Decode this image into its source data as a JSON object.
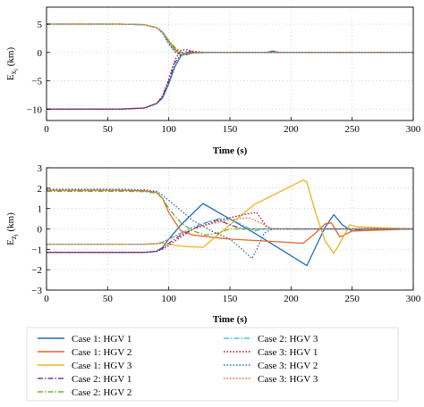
{
  "chart_data": [
    {
      "type": "line",
      "ylabel": "E",
      "ylabel_sub": "x",
      "ylabel_subsub": "i",
      "ylabel_unit": " (km)",
      "xlabel": "Time (s)",
      "xlim": [
        0,
        300
      ],
      "ylim": [
        -12,
        8
      ],
      "xticks": [
        0,
        50,
        100,
        150,
        200,
        250,
        300
      ],
      "yticks": [
        -10,
        -5,
        0,
        5
      ],
      "grid": true,
      "series": [
        {
          "name": "Case 1: HGV 1",
          "x": [
            0,
            60,
            80,
            90,
            95,
            100,
            105,
            110,
            115,
            120,
            130,
            150,
            180,
            185,
            190,
            200,
            300
          ],
          "y": [
            -10,
            -10,
            -9.8,
            -9,
            -8,
            -5.5,
            -2.5,
            -0.6,
            0,
            0,
            0,
            0,
            0,
            0.25,
            0,
            0,
            0
          ]
        },
        {
          "name": "Case 1: HGV 2",
          "x": [
            0,
            60,
            80,
            90,
            95,
            100,
            105,
            110,
            115,
            120,
            130,
            150,
            200,
            300
          ],
          "y": [
            5,
            5,
            4.9,
            4.4,
            3.6,
            2,
            0.6,
            -0.3,
            -0.4,
            -0.1,
            0,
            0,
            0,
            0
          ]
        },
        {
          "name": "Case 1: HGV 3",
          "x": [
            0,
            60,
            80,
            90,
            95,
            100,
            105,
            110,
            115,
            120,
            130,
            150,
            200,
            300
          ],
          "y": [
            5,
            5,
            4.9,
            4.4,
            3.6,
            1.8,
            0.3,
            -0.4,
            -0.3,
            0,
            0,
            0,
            0,
            0
          ]
        },
        {
          "name": "Case 2: HGV 1",
          "x": [
            0,
            60,
            80,
            90,
            95,
            100,
            105,
            110,
            115,
            120,
            130,
            150,
            200,
            300
          ],
          "y": [
            -10,
            -10,
            -9.8,
            -9,
            -7.8,
            -5,
            -1.8,
            -0.3,
            0.2,
            0.1,
            0,
            0,
            0,
            0
          ]
        },
        {
          "name": "Case 2: HGV 2",
          "x": [
            0,
            60,
            80,
            90,
            95,
            100,
            105,
            110,
            115,
            120,
            130,
            150,
            200,
            300
          ],
          "y": [
            5,
            5,
            4.9,
            4.4,
            3.6,
            2.1,
            0.9,
            0.1,
            -0.3,
            -0.1,
            0,
            0,
            0,
            0
          ]
        },
        {
          "name": "Case 2: HGV 3",
          "x": [
            0,
            60,
            80,
            90,
            95,
            100,
            105,
            110,
            115,
            120,
            130,
            150,
            200,
            300
          ],
          "y": [
            5,
            5,
            4.9,
            4.4,
            3.5,
            1.6,
            0.2,
            -0.3,
            -0.2,
            0,
            0,
            0,
            0,
            0
          ]
        },
        {
          "name": "Case 3: HGV 1",
          "x": [
            0,
            60,
            80,
            90,
            95,
            100,
            105,
            110,
            115,
            120,
            130,
            150,
            200,
            300
          ],
          "y": [
            -10,
            -10,
            -9.8,
            -9,
            -7.6,
            -4.6,
            -1.3,
            0.4,
            0.5,
            0.2,
            0,
            0,
            0,
            0
          ]
        },
        {
          "name": "Case 3: HGV 2",
          "x": [
            0,
            60,
            80,
            90,
            95,
            100,
            105,
            110,
            115,
            120,
            130,
            150,
            200,
            300
          ],
          "y": [
            5,
            5,
            4.9,
            4.4,
            3.4,
            1.5,
            0.1,
            -0.5,
            -0.3,
            0,
            0,
            0,
            0,
            0
          ]
        },
        {
          "name": "Case 3: HGV 3",
          "x": [
            0,
            60,
            80,
            90,
            95,
            100,
            105,
            110,
            115,
            120,
            130,
            150,
            200,
            300
          ],
          "y": [
            5,
            5,
            4.9,
            4.4,
            3.6,
            2,
            0.7,
            0,
            -0.2,
            0,
            0,
            0,
            0,
            0
          ]
        }
      ]
    },
    {
      "type": "line",
      "ylabel": "E",
      "ylabel_sub": "z",
      "ylabel_subsub": "i",
      "ylabel_unit": " (km)",
      "xlabel": "Time (s)",
      "xlim": [
        0,
        300
      ],
      "ylim": [
        -3,
        3
      ],
      "xticks": [
        0,
        50,
        100,
        150,
        200,
        250,
        300
      ],
      "yticks": [
        -3,
        -2,
        -1,
        0,
        1,
        2,
        3
      ],
      "grid": true,
      "series": [
        {
          "name": "Case 1: HGV 1",
          "x": [
            0,
            80,
            90,
            95,
            100,
            110,
            128,
            170,
            213,
            220,
            228,
            235,
            242,
            250,
            260,
            300
          ],
          "y": [
            -1.15,
            -1.15,
            -1.1,
            -0.9,
            -0.5,
            0.2,
            1.25,
            -0.2,
            -1.8,
            -0.9,
            0.1,
            0.7,
            0.2,
            -0.1,
            0,
            0
          ]
        },
        {
          "name": "Case 1: HGV 2",
          "x": [
            0,
            60,
            80,
            90,
            95,
            100,
            110,
            120,
            150,
            210,
            220,
            228,
            233,
            240,
            250,
            300
          ],
          "y": [
            1.9,
            1.9,
            1.87,
            1.8,
            1.5,
            0.8,
            -0.1,
            -0.3,
            -0.5,
            -0.7,
            -0.2,
            0.25,
            0.3,
            -0.4,
            -0.1,
            0
          ]
        },
        {
          "name": "Case 1: HGV 3",
          "x": [
            0,
            80,
            90,
            95,
            100,
            110,
            128,
            170,
            210,
            213,
            220,
            228,
            235,
            240,
            248,
            255,
            300
          ],
          "y": [
            -0.75,
            -0.75,
            -0.73,
            -0.7,
            -0.75,
            -0.85,
            -0.9,
            1.2,
            2.4,
            2.3,
            0.8,
            -0.6,
            -1.2,
            -0.7,
            0.2,
            0.1,
            0
          ]
        },
        {
          "name": "Case 2: HGV 1",
          "x": [
            0,
            80,
            90,
            95,
            100,
            110,
            120,
            130,
            140,
            150,
            160,
            180,
            300
          ],
          "y": [
            -1.15,
            -1.15,
            -1.1,
            -0.95,
            -0.7,
            -0.3,
            0,
            0.3,
            0.45,
            0.2,
            0,
            0,
            0
          ]
        },
        {
          "name": "Case 2: HGV 2",
          "x": [
            0,
            60,
            80,
            90,
            95,
            100,
            110,
            120,
            130,
            140,
            150,
            160,
            300
          ],
          "y": [
            1.85,
            1.85,
            1.83,
            1.75,
            1.5,
            1,
            0.3,
            -0.1,
            -0.3,
            -0.2,
            0,
            0,
            0
          ]
        },
        {
          "name": "Case 2: HGV 3",
          "x": [
            0,
            80,
            90,
            95,
            100,
            110,
            120,
            130,
            140,
            150,
            160,
            170,
            180,
            300
          ],
          "y": [
            -0.75,
            -0.75,
            -0.72,
            -0.65,
            -0.5,
            -0.2,
            0.1,
            0.3,
            0.5,
            0.5,
            0.2,
            -0.1,
            0,
            0
          ]
        },
        {
          "name": "Case 3: HGV 1",
          "x": [
            0,
            80,
            90,
            95,
            100,
            110,
            120,
            135,
            150,
            165,
            172,
            180,
            185,
            300
          ],
          "y": [
            -1.15,
            -1.15,
            -1.1,
            -1,
            -0.8,
            -0.4,
            0,
            0.3,
            0.55,
            0.75,
            0.8,
            0.1,
            0,
            0
          ]
        },
        {
          "name": "Case 3: HGV 2",
          "x": [
            0,
            60,
            80,
            90,
            95,
            100,
            110,
            120,
            135,
            150,
            160,
            168,
            172,
            178,
            185,
            300
          ],
          "y": [
            1.95,
            1.95,
            1.92,
            1.85,
            1.65,
            1.4,
            0.9,
            0.4,
            -0.1,
            -0.5,
            -1,
            -1.45,
            -1,
            -0.2,
            0,
            0
          ]
        },
        {
          "name": "Case 3: HGV 3",
          "x": [
            0,
            80,
            90,
            95,
            100,
            110,
            120,
            135,
            150,
            165,
            175,
            185,
            300
          ],
          "y": [
            -0.75,
            -0.75,
            -0.72,
            -0.65,
            -0.5,
            -0.25,
            0,
            0.25,
            0.45,
            0.55,
            0.3,
            0,
            0
          ]
        }
      ]
    }
  ],
  "legend": {
    "placement": "bottom",
    "items": [
      {
        "label": "Case 1: HGV 1",
        "color": "#1f6fb5",
        "dash": "solid"
      },
      {
        "label": "Case 1: HGV 2",
        "color": "#e6642a",
        "dash": "solid"
      },
      {
        "label": "Case 1: HGV 3",
        "color": "#eeb220",
        "dash": "solid"
      },
      {
        "label": "Case 2: HGV 1",
        "color": "#7b3a94",
        "dash": "dashdot"
      },
      {
        "label": "Case 2: HGV 2",
        "color": "#77ac30",
        "dash": "dashdot"
      },
      {
        "label": "Case 2: HGV 3",
        "color": "#4dbeee",
        "dash": "dashdot"
      },
      {
        "label": "Case 3: HGV 1",
        "color": "#a2142f",
        "dash": "dotted"
      },
      {
        "label": "Case 3: HGV 2",
        "color": "#1f6fb5",
        "dash": "dotted"
      },
      {
        "label": "Case 3: HGV 3",
        "color": "#e6642a",
        "dash": "dotted"
      }
    ]
  }
}
